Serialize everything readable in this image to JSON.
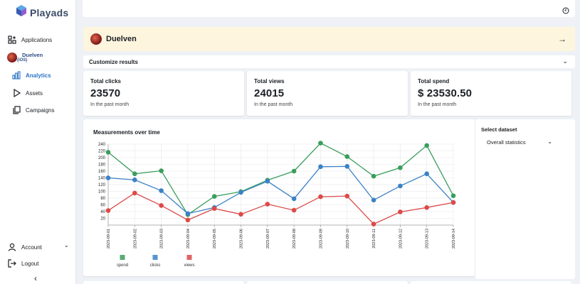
{
  "app": {
    "brand": "Playads"
  },
  "sidebar": {
    "applications_label": "Applications",
    "app_name": "Duelven",
    "app_platform": "(iOS)",
    "items": [
      {
        "label": "Analytics",
        "icon": "bar-chart-icon",
        "active": true
      },
      {
        "label": "Assets",
        "icon": "play-icon",
        "active": false
      },
      {
        "label": "Campaigns",
        "icon": "copy-icon",
        "active": false
      }
    ],
    "account_label": "Account",
    "logout_label": "Logout"
  },
  "banner": {
    "title": "Duelven"
  },
  "customize": {
    "label": "Customize results"
  },
  "stats": [
    {
      "title": "Total clicks",
      "value": "23570",
      "sub": "In the past month"
    },
    {
      "title": "Total views",
      "value": "24015",
      "sub": "In the past month"
    },
    {
      "title": "Total spend",
      "value": "$ 23530.50",
      "sub": "In the past month"
    }
  ],
  "dataset": {
    "label": "Select dataset",
    "selected": "Overall statistics"
  },
  "colors": {
    "accent": "#2a73c4",
    "banner_bg": "#fdf5dd",
    "spend": "#3a9e5c",
    "clicks": "#3a82c6",
    "views": "#dc4a48"
  },
  "chart_data": {
    "type": "line",
    "title": "Measurements over time",
    "x": [
      "2023-09-01",
      "2023-09-02",
      "2023-09-03",
      "2023-09-04",
      "2023-09-05",
      "2023-09-06",
      "2023-09-07",
      "2023-09-08",
      "2023-09-09",
      "2023-09-10",
      "2023-09-11",
      "2023-09-12",
      "2023-09-13",
      "2023-09-14"
    ],
    "yticks": [
      20,
      40,
      60,
      80,
      100,
      120,
      140,
      160,
      180,
      200,
      220,
      240
    ],
    "ylim": [
      0,
      240
    ],
    "grid": true,
    "legend_position": "bottom-left",
    "series": [
      {
        "name": "spend",
        "color": "#3a9e5c",
        "values": [
          216,
          152,
          161,
          31,
          85,
          99,
          133,
          160,
          243,
          203,
          145,
          170,
          236,
          87
        ]
      },
      {
        "name": "clicks",
        "color": "#3a82c6",
        "values": [
          140,
          134,
          102,
          34,
          52,
          97,
          130,
          78,
          173,
          174,
          74,
          116,
          152,
          67
        ]
      },
      {
        "name": "views",
        "color": "#dc4a48",
        "values": [
          43,
          95,
          58,
          15,
          49,
          32,
          62,
          44,
          84,
          86,
          3,
          39,
          52,
          67
        ]
      }
    ]
  }
}
